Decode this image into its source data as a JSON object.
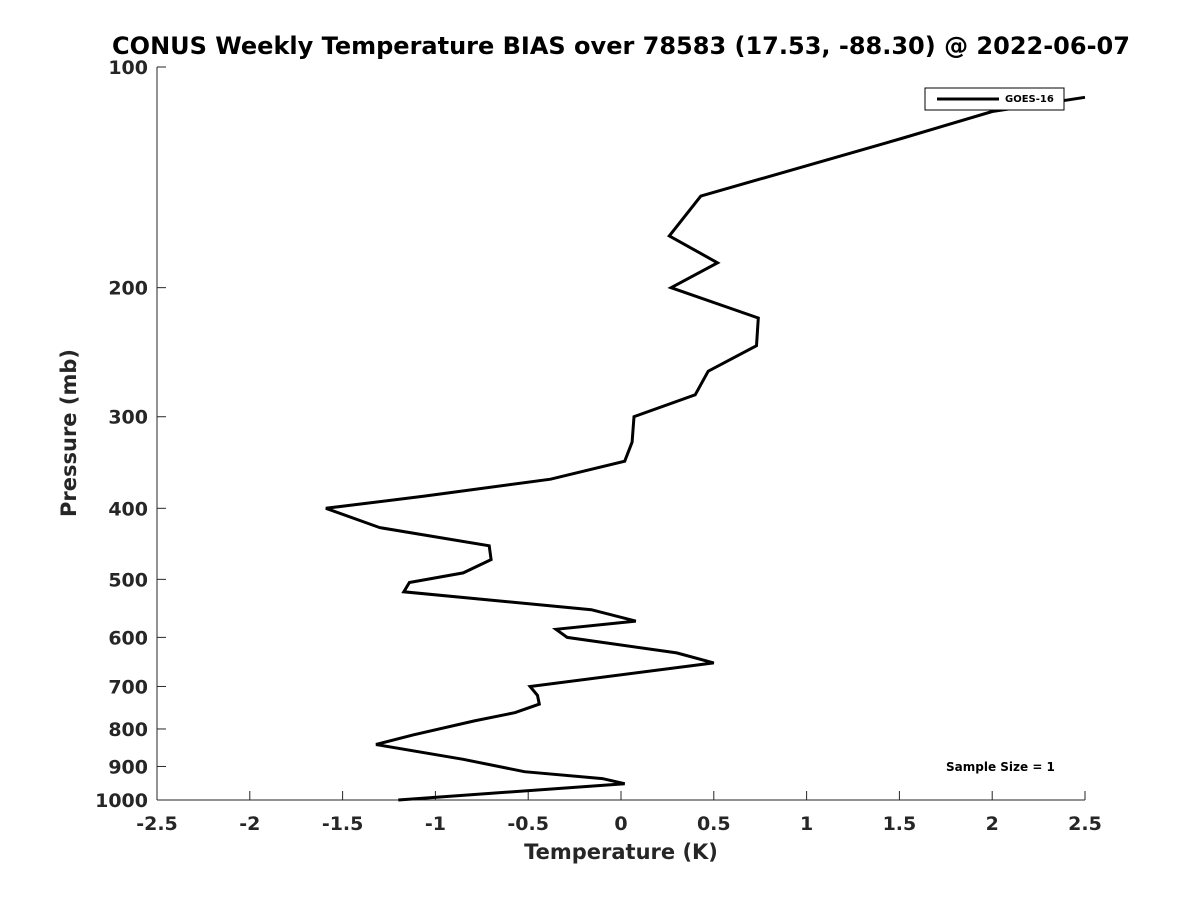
{
  "chart_data": {
    "type": "line",
    "title": "CONUS Weekly Temperature BIAS over 78583 (17.53, -88.30) @ 2022-06-07",
    "xlabel": "Temperature (K)",
    "ylabel": "Pressure (mb)",
    "xlim": [
      -2.5,
      2.5
    ],
    "ylim": [
      100,
      1000
    ],
    "y_scale": "log",
    "y_reversed": true,
    "x_ticks": [
      -2.5,
      -2,
      -1.5,
      -1,
      -0.5,
      0,
      0.5,
      1,
      1.5,
      2,
      2.5
    ],
    "x_tick_labels": [
      "-2.5",
      "-2",
      "-1.5",
      "-1",
      "-0.5",
      "0",
      "0.5",
      "1",
      "1.5",
      "2",
      "2.5"
    ],
    "y_ticks": [
      100,
      200,
      300,
      400,
      500,
      600,
      700,
      800,
      900,
      1000
    ],
    "y_tick_labels": [
      "100",
      "200",
      "300",
      "400",
      "500",
      "600",
      "700",
      "800",
      "900",
      "1000"
    ],
    "grid": false,
    "legend_position": "top-right",
    "annotation": "Sample Size = 1",
    "series": [
      {
        "name": "GOES-16",
        "color": "#000000",
        "points": [
          [
            2.5,
            110
          ],
          [
            2.0,
            115
          ],
          [
            1.52,
            125
          ],
          [
            0.43,
            150
          ],
          [
            0.26,
            170
          ],
          [
            0.52,
            185
          ],
          [
            0.27,
            200
          ],
          [
            0.74,
            220
          ],
          [
            0.73,
            240
          ],
          [
            0.47,
            260
          ],
          [
            0.4,
            280
          ],
          [
            0.07,
            300
          ],
          [
            0.06,
            325
          ],
          [
            0.02,
            345
          ],
          [
            -0.38,
            365
          ],
          [
            -1.06,
            385
          ],
          [
            -1.59,
            400
          ],
          [
            -1.3,
            425
          ],
          [
            -0.71,
            450
          ],
          [
            -0.7,
            470
          ],
          [
            -0.85,
            490
          ],
          [
            -1.14,
            505
          ],
          [
            -1.17,
            520
          ],
          [
            -0.16,
            550
          ],
          [
            0.08,
            570
          ],
          [
            -0.35,
            585
          ],
          [
            -0.29,
            600
          ],
          [
            0.3,
            630
          ],
          [
            0.5,
            650
          ],
          [
            -0.49,
            700
          ],
          [
            -0.45,
            720
          ],
          [
            -0.44,
            740
          ],
          [
            -0.57,
            760
          ],
          [
            -0.79,
            780
          ],
          [
            -1.12,
            815
          ],
          [
            -1.32,
            840
          ],
          [
            -0.85,
            880
          ],
          [
            -0.52,
            915
          ],
          [
            -0.1,
            935
          ],
          [
            0.02,
            950
          ],
          [
            -1.2,
            1000
          ]
        ]
      }
    ]
  }
}
